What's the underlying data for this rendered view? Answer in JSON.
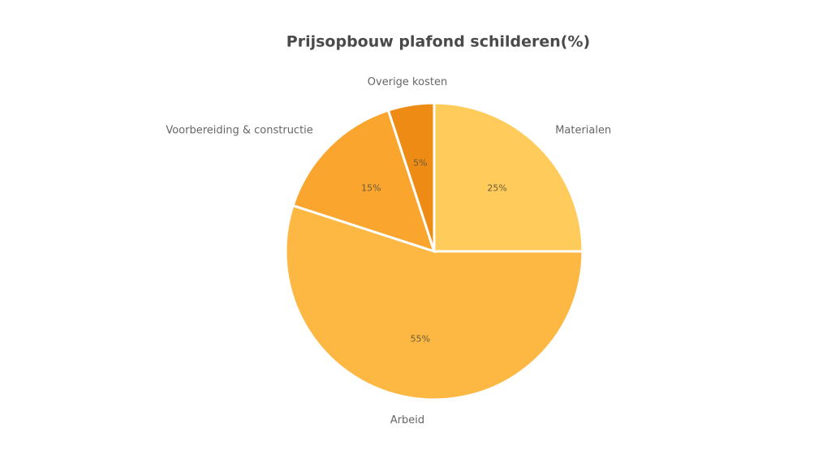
{
  "chart_data": {
    "type": "pie",
    "title": "Prijsopbouw plafond schilderen(%)",
    "categories": [
      "Materialen",
      "Arbeid",
      "Voorbereiding & constructie",
      "Overige kosten"
    ],
    "values": [
      25,
      55,
      15,
      5
    ],
    "value_labels": [
      "25%",
      "55%",
      "15%",
      "5%"
    ],
    "colors": [
      "#ffcc5c",
      "#fdb843",
      "#f9a52e",
      "#ee8b14"
    ]
  }
}
